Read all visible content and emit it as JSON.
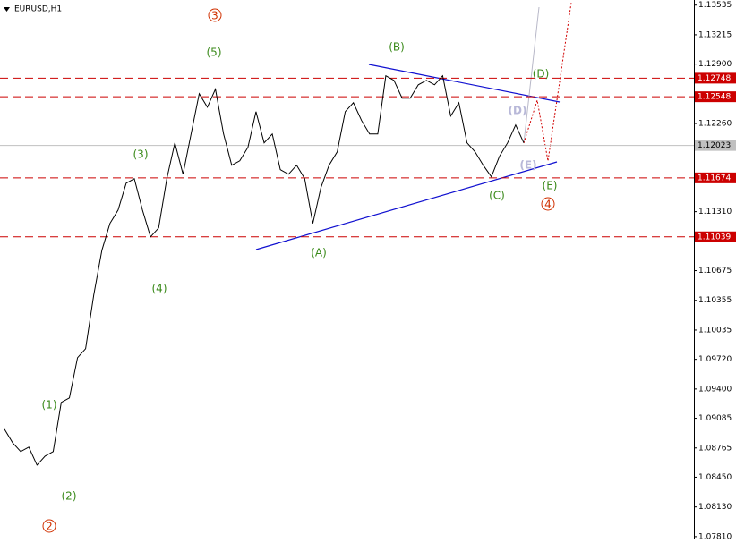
{
  "chart_data": {
    "type": "line",
    "title": "EURUSD,H1",
    "values": [
      1.08967,
      1.08822,
      1.08726,
      1.08774,
      1.08581,
      1.08677,
      1.08726,
      1.09256,
      1.09304,
      1.09738,
      1.09834,
      1.10412,
      1.10894,
      1.11183,
      1.11328,
      1.11617,
      1.11665,
      1.11328,
      1.11039,
      1.11135,
      1.11665,
      1.12051,
      1.11713,
      1.12147,
      1.12581,
      1.12436,
      1.12629,
      1.12147,
      1.1181,
      1.11858,
      1.12003,
      1.12388,
      1.12051,
      1.12147,
      1.11762,
      1.11713,
      1.1181,
      1.11665,
      1.11183,
      1.11569,
      1.1181,
      1.11954,
      1.12388,
      1.12484,
      1.12292,
      1.12147,
      1.12147,
      1.12774,
      1.12725,
      1.12533,
      1.12533,
      1.12677,
      1.12725,
      1.12677,
      1.12774,
      1.1234,
      1.12484,
      1.12051,
      1.11954,
      1.1181,
      1.11685,
      1.11906,
      1.12051,
      1.12244,
      1.12051
    ],
    "color": "#000000",
    "ylim": [
      1.0778,
      1.1359
    ],
    "yticks": [
      1.13535,
      1.13215,
      {
        "value": 1.129,
        "label": "1.12900"
      },
      {
        "value": 1.1226,
        "label": "1.12260"
      },
      {
        "value": 1.1131,
        "label": "1.11310"
      },
      1.10675,
      1.10355,
      1.10035,
      {
        "value": 1.0972,
        "label": "1.09720"
      },
      {
        "value": 1.094,
        "label": "1.09400"
      },
      1.09085,
      1.08765,
      {
        "value": 1.0845,
        "label": "1.08450"
      },
      {
        "value": 1.0813,
        "label": "1.08130"
      },
      {
        "value": 1.0781,
        "label": "1.07810"
      }
    ],
    "levels": [
      1.12748,
      1.12548,
      1.11674,
      1.11039
    ],
    "level_color": "#cc0000",
    "current_price": 1.12023,
    "annotations": [
      {
        "text": "(1)",
        "color": "#3a8a1a"
      },
      {
        "text": "(2)",
        "color": "#3a8a1a"
      },
      {
        "text": "(3)",
        "color": "#3a8a1a"
      },
      {
        "text": "(4)",
        "color": "#3a8a1a"
      },
      {
        "text": "(5)",
        "color": "#3a8a1a"
      },
      {
        "text": "(A)",
        "color": "#3a8a1a"
      },
      {
        "text": "(B)",
        "color": "#3a8a1a"
      },
      {
        "text": "(C)",
        "color": "#3a8a1a"
      },
      {
        "text": "(D)",
        "color": "#3a8a1a"
      },
      {
        "text": "(E)",
        "color": "#3a8a1a"
      },
      {
        "text": "(D)",
        "color": "#b8b8d8"
      },
      {
        "text": "(E)",
        "color": "#b8b8d8"
      },
      {
        "text": "3",
        "color": "#d03000",
        "circled": true
      },
      {
        "text": "2",
        "color": "#d03000",
        "circled": true
      },
      {
        "text": "4",
        "color": "#d03000",
        "circled": true
      }
    ]
  }
}
